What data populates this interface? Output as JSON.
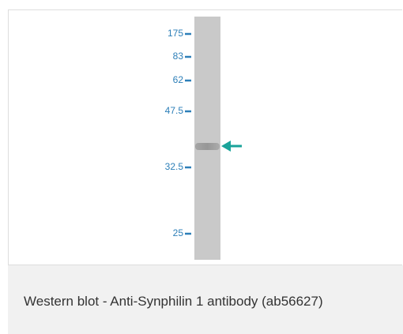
{
  "figure": {
    "markers": [
      "175",
      "83",
      "62",
      "47.5",
      "32.5",
      "25"
    ],
    "caption": "Western blot - Anti-Synphilin 1 antibody (ab56627)"
  }
}
